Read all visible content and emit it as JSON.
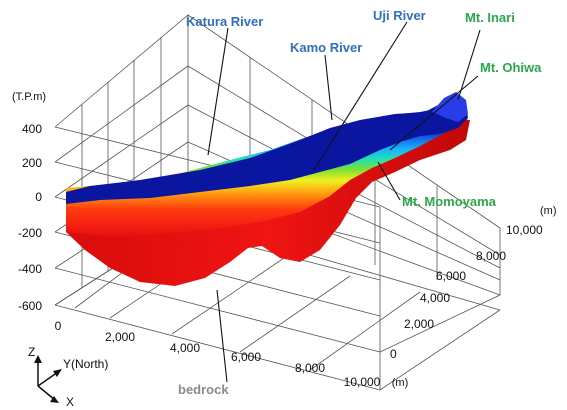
{
  "y_unit": "(T.P.m)",
  "elevation_ticks": [
    "400",
    "200",
    "0",
    "-200",
    "-400",
    "-600"
  ],
  "x_ticks": [
    "0",
    "2,000",
    "4,000",
    "6,000",
    "8,000",
    "10,000"
  ],
  "x_unit": "(m)",
  "y_ticks": [
    "0",
    "2,000",
    "4,000",
    "6,000",
    "8,000",
    "10,000"
  ],
  "y_unit_right": "(m)",
  "labels": {
    "katura": "Katura River",
    "kamo": "Kamo River",
    "uji": "Uji River",
    "inari": "Mt. Inari",
    "ohiwa": "Mt. Ohiwa",
    "momoyama": "Mt. Momoyama",
    "bedrock": "bedrock"
  },
  "triad": {
    "z": "Z",
    "y": "Y(North)",
    "x": "X"
  },
  "colors": {
    "blue_label": "#2f6fc0",
    "green_label": "#2aa84a",
    "gray_label": "#8a8a8a",
    "surface_top": "#0a1aa8",
    "bedrock": "#ee1111"
  }
}
